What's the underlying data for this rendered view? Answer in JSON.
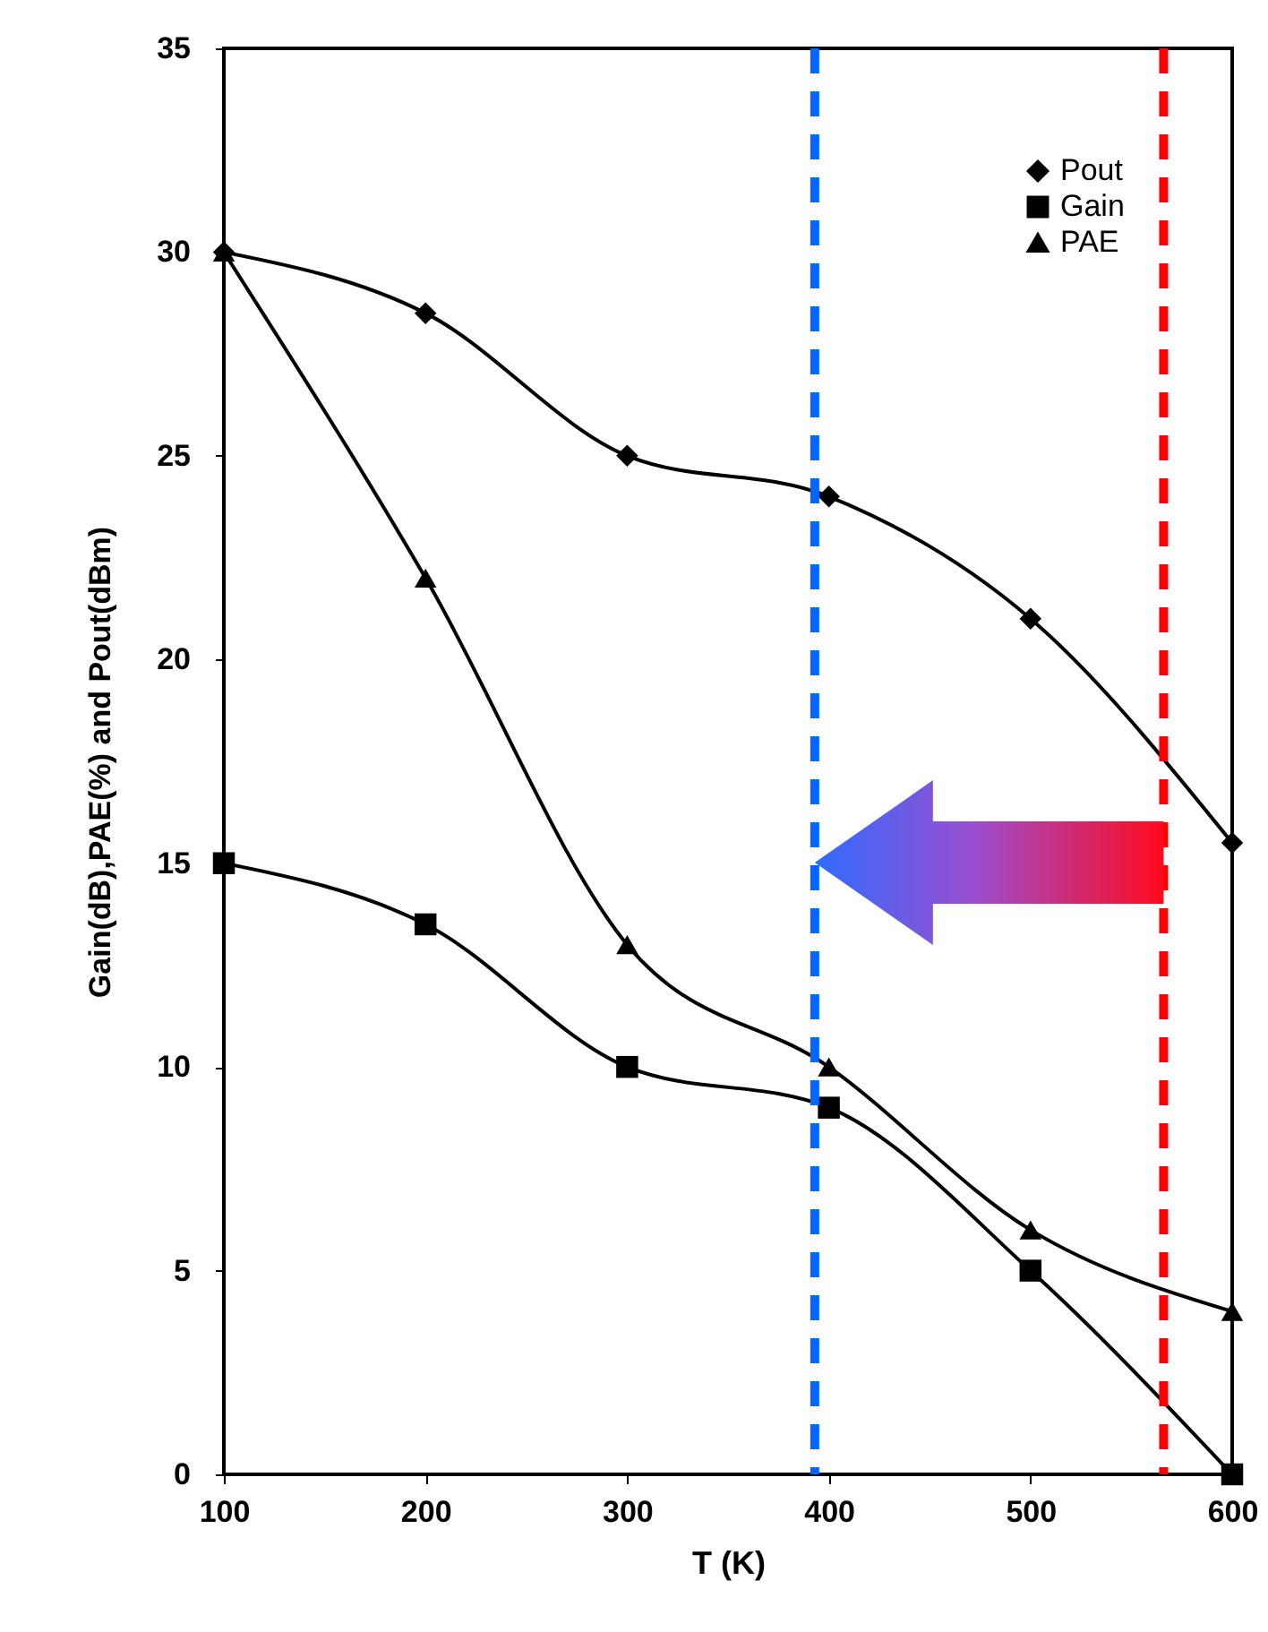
{
  "chart_data": {
    "type": "line",
    "xlabel": "T (K)",
    "ylabel": "Gain(dB),PAE(%) and Pout(dBm)",
    "x": [
      100,
      200,
      300,
      400,
      500,
      600
    ],
    "series": [
      {
        "name": "Pout",
        "color": "#000000",
        "marker": "diamond",
        "values": [
          30,
          28.5,
          25,
          24,
          21,
          15.5
        ]
      },
      {
        "name": "Gain",
        "color": "#000000",
        "marker": "square",
        "values": [
          15,
          13.5,
          10,
          9,
          5,
          0
        ]
      },
      {
        "name": "PAE",
        "color": "#000000",
        "marker": "triangle",
        "values": [
          30,
          22,
          13,
          10,
          6,
          4
        ]
      }
    ],
    "xlim": [
      100,
      600
    ],
    "xticks": [
      100,
      200,
      300,
      400,
      500,
      600
    ],
    "ylim": [
      0,
      35
    ],
    "yticks": [
      0,
      5,
      10,
      15,
      20,
      25,
      30,
      35
    ],
    "ref_lines": [
      {
        "axis": "x",
        "value": 393,
        "color": "#0066ff",
        "line_style": "dashed"
      },
      {
        "axis": "x",
        "value": 566,
        "color": "#ff0000",
        "line_style": "dashed"
      }
    ],
    "legend": "top right",
    "grid": false,
    "line_style": "solid"
  }
}
